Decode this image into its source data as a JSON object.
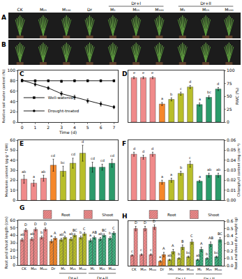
{
  "photos": {
    "panels": [
      "A",
      "B"
    ],
    "labels": [
      "CK",
      "M₂₅",
      "M₁₀₀",
      "Dr",
      "M₁",
      "M₂₅",
      "M₁₀₀",
      "M₁",
      "M₂₅",
      "M₁₀₀"
    ],
    "groups": [
      {
        "label": "Dr+I",
        "members": [
          4,
          5,
          6
        ]
      },
      {
        "label": "Dr+II",
        "members": [
          7,
          8,
          9
        ]
      }
    ]
  },
  "chart_data": [
    {
      "panel": "C",
      "type": "line",
      "xlabel": "Time (d)",
      "ylabel": "Relative soil water content (%)",
      "x": [
        0,
        1,
        2,
        3,
        4,
        5,
        6,
        7
      ],
      "xlim": [
        -0.3,
        7.3
      ],
      "xticks": [
        0,
        1,
        2,
        3,
        4,
        5,
        6,
        7
      ],
      "ylim": [
        0,
        100
      ],
      "yticks": [
        0,
        20,
        40,
        60,
        80,
        100
      ],
      "grid": false,
      "legend": "lower left",
      "series": [
        {
          "name": "Well-watered",
          "color": "#000000",
          "marker": "square",
          "line_style": "solid",
          "values": [
            80,
            80,
            80,
            79,
            80,
            80,
            80,
            80
          ],
          "errors": [
            2,
            2,
            2,
            2,
            2,
            2,
            2,
            2
          ]
        },
        {
          "name": "Drought-treated",
          "color": "#000000",
          "marker": "circle",
          "line_style": "solid",
          "values": [
            81,
            73,
            66,
            55,
            48,
            41,
            35,
            29
          ],
          "errors": [
            2,
            3,
            3,
            4,
            4,
            4,
            4,
            3
          ]
        }
      ]
    },
    {
      "panel": "D",
      "type": "bar",
      "ylabel": "RWC (%)",
      "categories": [
        null,
        null,
        null,
        null,
        null,
        null,
        null,
        null,
        null,
        null
      ],
      "values": [
        86,
        86,
        86,
        35,
        44,
        55,
        68,
        34,
        48,
        64
      ],
      "errors": [
        2,
        2,
        2,
        3,
        3,
        3,
        3,
        3,
        3,
        3
      ],
      "letters": [
        "e",
        "e",
        "e",
        "a",
        "b",
        "c",
        "d",
        "a",
        "bc",
        "d"
      ],
      "colors": [
        "#f08a8a",
        "#f08a8a",
        "#f08a8a",
        "#f5872a",
        "#b8be2a",
        "#b8be2a",
        "#b8be2a",
        "#2b9a6a",
        "#2b9a6a",
        "#2b9a6a"
      ],
      "ylim": [
        0,
        100
      ],
      "yticks": [
        0,
        25,
        50,
        75,
        100
      ],
      "grid": false,
      "tick_labels": "y"
    },
    {
      "panel": "E",
      "type": "bar",
      "ylabel": "Melatonin content (pg g⁻¹ DW)",
      "categories": [
        null,
        null,
        null,
        null,
        null,
        null,
        null,
        null,
        null,
        null
      ],
      "values": [
        21,
        17,
        22,
        35,
        29,
        37,
        47,
        33,
        33,
        37
      ],
      "errors": [
        4,
        3,
        3,
        6,
        5,
        5,
        8,
        5,
        3,
        4
      ],
      "letters": [
        "ab",
        "a",
        "ab",
        "cd",
        "bc",
        "cd",
        "d",
        "cd",
        "cd",
        "cd"
      ],
      "colors": [
        "#f08a8a",
        "#f08a8a",
        "#f08a8a",
        "#f5872a",
        "#b8be2a",
        "#b8be2a",
        "#b8be2a",
        "#2b9a6a",
        "#2b9a6a",
        "#2b9a6a"
      ],
      "ylim": [
        0,
        60
      ],
      "yticks": [
        0,
        10,
        20,
        30,
        40,
        50,
        60
      ],
      "grid": false,
      "tick_labels": "y"
    },
    {
      "panel": "F",
      "type": "bar",
      "ylabel": "Chlorophyll content (mg cm⁻¹)",
      "categories": [
        null,
        null,
        null,
        null,
        null,
        null,
        null,
        null,
        null,
        null
      ],
      "values": [
        0.046,
        0.043,
        0.046,
        0.018,
        0.02,
        0.027,
        0.036,
        0.019,
        0.025,
        0.025
      ],
      "errors": [
        0.002,
        0.002,
        0.002,
        0.002,
        0.002,
        0.002,
        0.003,
        0.001,
        0.002,
        0.002
      ],
      "letters": [
        "d",
        "d",
        "d",
        "a",
        "a",
        "b",
        "c",
        "a",
        "ab",
        "ab"
      ],
      "colors": [
        "#f08a8a",
        "#f08a8a",
        "#f08a8a",
        "#f5872a",
        "#b8be2a",
        "#b8be2a",
        "#b8be2a",
        "#2b9a6a",
        "#2b9a6a",
        "#2b9a6a"
      ],
      "ylim": [
        0,
        0.06
      ],
      "yticks": [
        {
          "value": 0,
          "label": "0.00"
        },
        {
          "value": 0.01,
          "label": "0.01"
        },
        {
          "value": 0.02,
          "label": "0.02"
        },
        {
          "value": 0.03,
          "label": "0.03"
        },
        {
          "value": 0.04,
          "label": "0.04"
        },
        {
          "value": 0.05,
          "label": "0.05"
        },
        {
          "value": 0.06,
          "label": "0.06"
        }
      ],
      "grid": false,
      "tick_labels": "y"
    },
    {
      "panel": "G",
      "type": "bar",
      "ylabel": "Root and shoot length (cm)",
      "categories": [
        "CK",
        "M₂₅",
        "M₁₀₀",
        "Dr",
        "M₁",
        "M₂₅",
        "M₁₀₀",
        "M₁",
        "M₂₅",
        "M₁₀₀"
      ],
      "groups": [
        {
          "label": "Dr+I",
          "members": [
            4,
            5,
            6
          ]
        },
        {
          "label": "Dr+II",
          "members": [
            7,
            8,
            9
          ]
        }
      ],
      "colors": [
        "#f08a8a",
        "#f08a8a",
        "#f08a8a",
        "#f5872a",
        "#b8be2a",
        "#b8be2a",
        "#b8be2a",
        "#2b9a6a",
        "#2b9a6a",
        "#2b9a6a"
      ],
      "ylim": [
        0,
        60
      ],
      "yticks": [
        0,
        10,
        20,
        30,
        40,
        50,
        60
      ],
      "grid": false,
      "legend": "upper right",
      "series": [
        {
          "name": "Root",
          "values": [
            34,
            35,
            37,
            32,
            34,
            35,
            37,
            33,
            35,
            36
          ],
          "errors": [
            2,
            2,
            2,
            2,
            2,
            2,
            2,
            2,
            2,
            2
          ],
          "letters": [
            "ab",
            "ab",
            "b",
            "a",
            "ab",
            "ab",
            "b",
            "a",
            "ab",
            "b"
          ]
        },
        {
          "name": "Shoot",
          "values": [
            47,
            48,
            48,
            36,
            37,
            40,
            42,
            37,
            40,
            43
          ],
          "errors": [
            2,
            2,
            2,
            2,
            2,
            2,
            2,
            2,
            2,
            2
          ],
          "letters": [
            "D",
            "D",
            "D",
            "A",
            "A",
            "BC",
            "C",
            "AB",
            "BC",
            "C"
          ]
        }
      ]
    },
    {
      "panel": "H",
      "type": "bar",
      "ylabel": "Root and shoot dry weight (g)",
      "categories": [
        "CK",
        "M₂₅",
        "M₁₀₀",
        "Dr",
        "M₁",
        "M₂₅",
        "M₁₀₀",
        "M₁",
        "M₂₅",
        "M₁₀₀"
      ],
      "groups": [
        {
          "label": "Dr+I",
          "members": [
            4,
            5,
            6
          ]
        },
        {
          "label": "Dr+II",
          "members": [
            7,
            8,
            9
          ]
        }
      ],
      "colors": [
        "#f08a8a",
        "#f08a8a",
        "#f08a8a",
        "#f5872a",
        "#b8be2a",
        "#b8be2a",
        "#b8be2a",
        "#2b9a6a",
        "#2b9a6a",
        "#2b9a6a"
      ],
      "ylim": [
        0,
        0.6
      ],
      "yticks": [
        {
          "value": 0,
          "label": "0.0"
        },
        {
          "value": 0.1,
          "label": "0.1"
        },
        {
          "value": 0.2,
          "label": "0.2"
        },
        {
          "value": 0.3,
          "label": "0.3"
        },
        {
          "value": 0.4,
          "label": "0.4"
        },
        {
          "value": 0.5,
          "label": "0.5"
        },
        {
          "value": 0.6,
          "label": "0.6"
        }
      ],
      "grid": false,
      "legend": "upper right",
      "series": [
        {
          "name": "Root",
          "values": [
            0.14,
            0.15,
            0.15,
            0.06,
            0.08,
            0.1,
            0.12,
            0.08,
            0.1,
            0.12
          ],
          "errors": [
            0.01,
            0.01,
            0.01,
            0.01,
            0.01,
            0.01,
            0.01,
            0.01,
            0.01,
            0.01
          ],
          "letters": [
            "c",
            "c",
            "c",
            "a",
            "ab",
            "b",
            "bc",
            "ab",
            "b",
            "bc"
          ]
        },
        {
          "name": "Shoot",
          "values": [
            0.5,
            0.5,
            0.52,
            0.15,
            0.19,
            0.25,
            0.32,
            0.22,
            0.29,
            0.35
          ],
          "errors": [
            0.03,
            0.03,
            0.03,
            0.03,
            0.03,
            0.03,
            0.03,
            0.03,
            0.03,
            0.03
          ],
          "letters": [
            "D",
            "D",
            "D",
            "A",
            "A",
            "B",
            "C",
            "A",
            "AB",
            "BC"
          ]
        }
      ]
    }
  ]
}
